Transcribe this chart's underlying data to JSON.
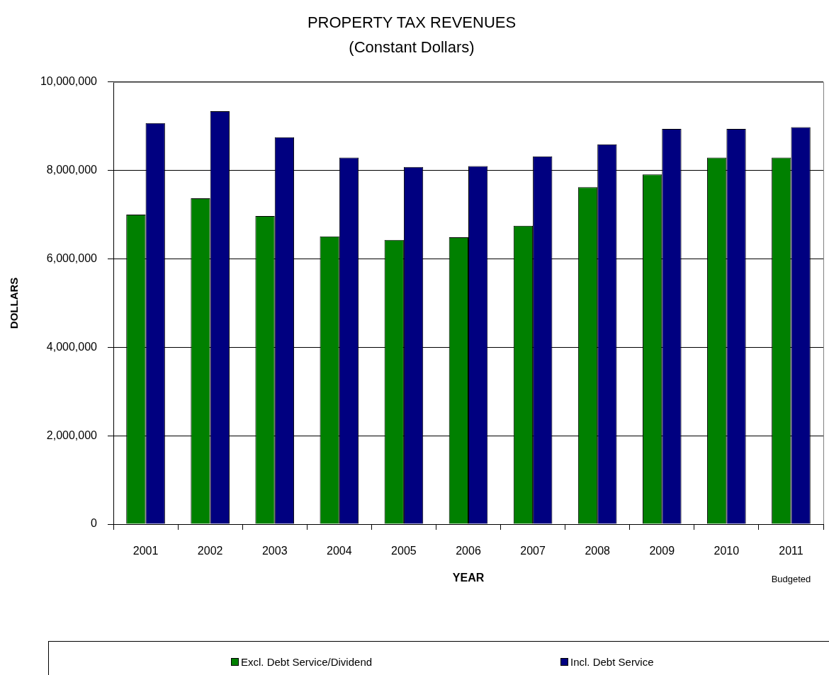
{
  "chart_data": {
    "type": "bar",
    "title": "PROPERTY TAX REVENUES",
    "subtitle": "(Constant Dollars)",
    "xlabel": "YEAR",
    "ylabel": "DOLLARS",
    "categories": [
      "2001",
      "2002",
      "2003",
      "2004",
      "2005",
      "2006",
      "2007",
      "2008",
      "2009",
      "2010",
      "2011"
    ],
    "series": [
      {
        "name": "Excl. Debt Service/Dividend",
        "color": "#008000",
        "values": [
          7000000,
          7370000,
          6970000,
          6510000,
          6430000,
          6490000,
          6750000,
          7620000,
          7910000,
          8290000,
          8290000
        ]
      },
      {
        "name": "Incl. Debt Service",
        "color": "#000080",
        "values": [
          9070000,
          9340000,
          8750000,
          8290000,
          8080000,
          8100000,
          8320000,
          8590000,
          8940000,
          8940000,
          8980000
        ]
      }
    ],
    "ylim": [
      0,
      10000000
    ],
    "yticks": [
      0,
      {
        "value": 2000000,
        "label": "2,000,000"
      },
      {
        "value": 4000000,
        "label": "4,000,000"
      },
      {
        "value": 6000000,
        "label": "6,000,000"
      },
      {
        "value": 8000000,
        "label": "8,000,000"
      },
      {
        "value": 10000000,
        "label": "10,000,000"
      }
    ],
    "grid": "y",
    "legend": "bottom",
    "annotations": [
      "Budgeted"
    ]
  }
}
